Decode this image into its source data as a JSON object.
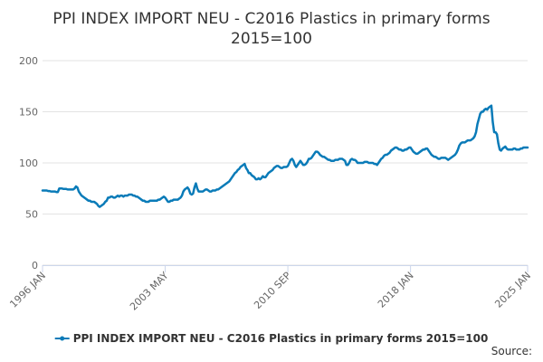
{
  "chart_data": {
    "type": "line",
    "title": "PPI INDEX IMPORT NEU - C2016 Plastics in primary forms",
    "subtitle": "2015=100",
    "source": "Source:",
    "categories": [
      "1996 JAN",
      null,
      null,
      null,
      null,
      null,
      null,
      null,
      null,
      null,
      null,
      null,
      null,
      null,
      null,
      null,
      null,
      null,
      null,
      null,
      null,
      null,
      null,
      null,
      null,
      null,
      null,
      null,
      null,
      null,
      null,
      null,
      null,
      null,
      null,
      null,
      null,
      null,
      null,
      null,
      null,
      null,
      null,
      null,
      null,
      null,
      null,
      null,
      null,
      null,
      null,
      null,
      null,
      null,
      null,
      null,
      null,
      null,
      null,
      null,
      null,
      null,
      null,
      null,
      null,
      null,
      null,
      null,
      null,
      null,
      null,
      null,
      null,
      null,
      null,
      null,
      null,
      null,
      null,
      null,
      null,
      null,
      null,
      null,
      null,
      null,
      null,
      null,
      "2003 MAY",
      null,
      null,
      null,
      null,
      null,
      null,
      null,
      null,
      null,
      null,
      null,
      null,
      null,
      null,
      null,
      null,
      null,
      null,
      null,
      null,
      null,
      null,
      null,
      null,
      null,
      null,
      null,
      null,
      null,
      null,
      null,
      null,
      null,
      null,
      null,
      null,
      null,
      null,
      null,
      null,
      null,
      null,
      null,
      null,
      null,
      null,
      null,
      null,
      null,
      null,
      null,
      null,
      null,
      null,
      null,
      null,
      null,
      null,
      null,
      null,
      null,
      null,
      null,
      null,
      null,
      null,
      null,
      null,
      null,
      null,
      null,
      null,
      null,
      null,
      null,
      null,
      null,
      null,
      null,
      null,
      null,
      null,
      null,
      null,
      null,
      null,
      null,
      "2010 SEP",
      null,
      null,
      null,
      null,
      null,
      null,
      null,
      null,
      null,
      null,
      null,
      null,
      null,
      null,
      null,
      null,
      null,
      null,
      null,
      null,
      null,
      null,
      null,
      null,
      null,
      null,
      null,
      null,
      null,
      null,
      null,
      null,
      null,
      null,
      null,
      null,
      null,
      null,
      null,
      null,
      null,
      null,
      null,
      null,
      null,
      null,
      null,
      null,
      null,
      null,
      null,
      null,
      null,
      null,
      null,
      null,
      null,
      null,
      null,
      null,
      null,
      null,
      null,
      null,
      null,
      null,
      null,
      null,
      null,
      null,
      null,
      null,
      null,
      null,
      null,
      null,
      null,
      null,
      null,
      null,
      null,
      null,
      null,
      null,
      null,
      null,
      null,
      "2018 JAN",
      null,
      null,
      null,
      null,
      null,
      null,
      null,
      null,
      null,
      null,
      null,
      null,
      null,
      null,
      null,
      null,
      null,
      null,
      null,
      null,
      null,
      null,
      null,
      null,
      null,
      null,
      null,
      null,
      null,
      null,
      null,
      null,
      null,
      null,
      null,
      null,
      null,
      null,
      null,
      null,
      null,
      null,
      null,
      null,
      null,
      null,
      null,
      null,
      null,
      null,
      null,
      null,
      null,
      null,
      null,
      null,
      null,
      null,
      null,
      null,
      null,
      null,
      null,
      null,
      null,
      null,
      null,
      null,
      null,
      null,
      null,
      null,
      null,
      null,
      null,
      null,
      null,
      null,
      null,
      null,
      null,
      null,
      null,
      "2025 JAN"
    ],
    "series": [
      {
        "name": "PPI INDEX IMPORT NEU - C2016 Plastics in primary forms 2015=100",
        "color": "#0a7bb8",
        "values": [
          73,
          73,
          73,
          73,
          72.5,
          72.5,
          72,
          72,
          72,
          72,
          71.5,
          71.5,
          75,
          75,
          75,
          74.5,
          74.5,
          74.5,
          74,
          74,
          74,
          74,
          74,
          75,
          77,
          76,
          72,
          70,
          68,
          67,
          66,
          65,
          64,
          63,
          63,
          62,
          62,
          62,
          61,
          60,
          58,
          57,
          58,
          59,
          60,
          62,
          63,
          66,
          66,
          67,
          67,
          66,
          66,
          67,
          68,
          67,
          68,
          68,
          67,
          68,
          68,
          68,
          69,
          69,
          69,
          68,
          68,
          67,
          67,
          66,
          65,
          64,
          63,
          63,
          62,
          62,
          62,
          63,
          63,
          63,
          63,
          63,
          63,
          64,
          64,
          65,
          66,
          67,
          66,
          64,
          62,
          62,
          63,
          63,
          64,
          64,
          64,
          64,
          65,
          66,
          68,
          72,
          74,
          75,
          76,
          74,
          70,
          69,
          70,
          76,
          80,
          75,
          72,
          72,
          72,
          72,
          73,
          74,
          74,
          73,
          72,
          72,
          73,
          73,
          73,
          74,
          74,
          75,
          76,
          77,
          78,
          79,
          80,
          81,
          82,
          84,
          86,
          88,
          90,
          91,
          93,
          94,
          96,
          97,
          98,
          99,
          95,
          93,
          90,
          90,
          88,
          87,
          86,
          84,
          84,
          85,
          84,
          85,
          87,
          86,
          86,
          88,
          90,
          91,
          92,
          93,
          95,
          96,
          97,
          97,
          96,
          95,
          95,
          96,
          96,
          96,
          97,
          100,
          103,
          104,
          102,
          98,
          96,
          98,
          100,
          102,
          100,
          98,
          98,
          99,
          101,
          104,
          104,
          105,
          107,
          109,
          111,
          111,
          110,
          108,
          107,
          106,
          106,
          105,
          104,
          103,
          103,
          102,
          102,
          102,
          103,
          103,
          103,
          104,
          104,
          104,
          103,
          102,
          98,
          98,
          100,
          103,
          104,
          103,
          103,
          102,
          100,
          100,
          100,
          100,
          100,
          101,
          101,
          101,
          100,
          100,
          100,
          100,
          99,
          99,
          98,
          100,
          102,
          104,
          105,
          107,
          108,
          108,
          109,
          110,
          112,
          113,
          114,
          115,
          115,
          114,
          113,
          113,
          112,
          112,
          113,
          113,
          114,
          115,
          115,
          113,
          111,
          110,
          109,
          109,
          110,
          111,
          112,
          113,
          113,
          114,
          114,
          112,
          110,
          108,
          107,
          106,
          106,
          105,
          104,
          104,
          105,
          105,
          105,
          105,
          104,
          103,
          104,
          105,
          106,
          107,
          108,
          110,
          113,
          117,
          119,
          120,
          120,
          120,
          121,
          122,
          122,
          122,
          123,
          124,
          126,
          130,
          138,
          143,
          148,
          150,
          150,
          152,
          153,
          152,
          154,
          155,
          156,
          140,
          130,
          130,
          128,
          119,
          113,
          112,
          114,
          115,
          116,
          114,
          113,
          113,
          113,
          113,
          114,
          114,
          113,
          113,
          113,
          114,
          114,
          115,
          115,
          115,
          115
        ]
      }
    ],
    "ylim": [
      0,
      200
    ],
    "yticks": [
      0,
      50,
      100,
      150,
      200
    ],
    "grid": true,
    "legend": "bottom"
  }
}
